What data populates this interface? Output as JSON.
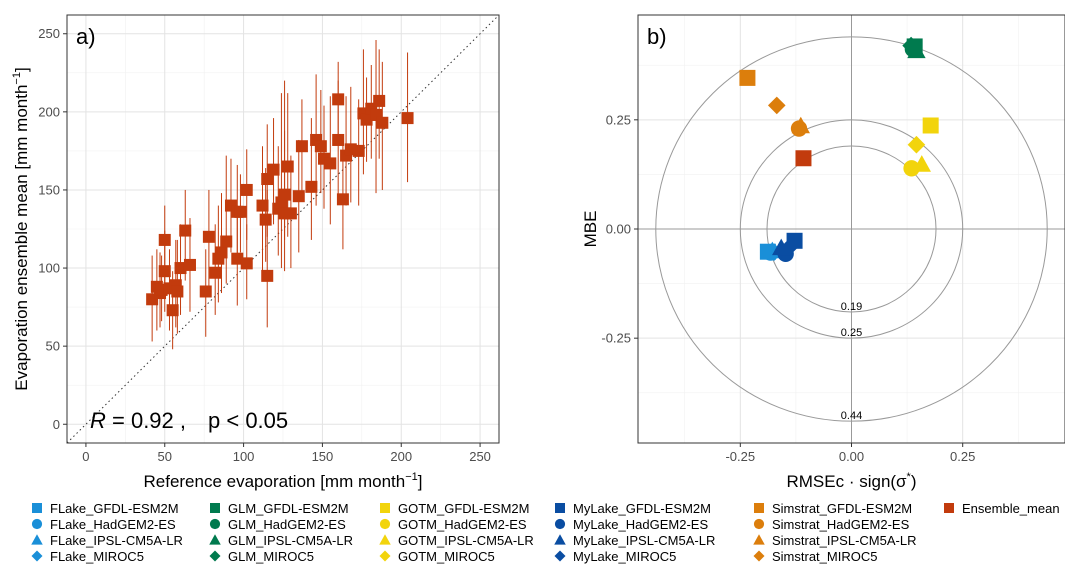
{
  "chart_data": [
    {
      "type": "scatter",
      "panel_label": "a)",
      "xlabel": "Reference evaporation [mm month",
      "xlabel_sup": "−1",
      "xlabel_end": "]",
      "ylabel": "Evaporation ensemble mean [mm month",
      "ylabel_sup": "−1",
      "ylabel_end": "]",
      "xlim": [
        -12,
        262
      ],
      "ylim": [
        -12,
        262
      ],
      "xticks": [
        0,
        50,
        100,
        150,
        200,
        250
      ],
      "yticks": [
        0,
        50,
        100,
        150,
        200,
        250
      ],
      "grid": true,
      "identity_line": true,
      "marker_color": "#C23B0D",
      "annotation": {
        "r_symbol": "R",
        "r_text": " = 0.92 ,",
        "p_text": "p < 0.05"
      },
      "points": [
        {
          "x": 42,
          "y": 80,
          "lo": 53,
          "hi": 108
        },
        {
          "x": 45,
          "y": 88,
          "lo": 60,
          "hi": 112
        },
        {
          "x": 47,
          "y": 84,
          "lo": 62,
          "hi": 110
        },
        {
          "x": 48,
          "y": 86,
          "lo": 66,
          "hi": 108
        },
        {
          "x": 50,
          "y": 98,
          "lo": 72,
          "hi": 124
        },
        {
          "x": 50,
          "y": 118,
          "lo": 85,
          "hi": 140
        },
        {
          "x": 53,
          "y": 87,
          "lo": 60,
          "hi": 112
        },
        {
          "x": 55,
          "y": 73,
          "lo": 48,
          "hi": 98
        },
        {
          "x": 57,
          "y": 89,
          "lo": 62,
          "hi": 118
        },
        {
          "x": 58,
          "y": 85,
          "lo": 58,
          "hi": 118
        },
        {
          "x": 60,
          "y": 100,
          "lo": 70,
          "hi": 128
        },
        {
          "x": 63,
          "y": 124,
          "lo": 92,
          "hi": 150
        },
        {
          "x": 66,
          "y": 102,
          "lo": 72,
          "hi": 132
        },
        {
          "x": 76,
          "y": 85,
          "lo": 56,
          "hi": 112
        },
        {
          "x": 78,
          "y": 120,
          "lo": 88,
          "hi": 150
        },
        {
          "x": 82,
          "y": 97,
          "lo": 70,
          "hi": 128
        },
        {
          "x": 84,
          "y": 106,
          "lo": 78,
          "hi": 140
        },
        {
          "x": 86,
          "y": 110,
          "lo": 84,
          "hi": 148
        },
        {
          "x": 89,
          "y": 117,
          "lo": 90,
          "hi": 172
        },
        {
          "x": 92,
          "y": 140,
          "lo": 110,
          "hi": 170
        },
        {
          "x": 96,
          "y": 106,
          "lo": 76,
          "hi": 140
        },
        {
          "x": 96,
          "y": 136,
          "lo": 106,
          "hi": 166
        },
        {
          "x": 98,
          "y": 136,
          "lo": 110,
          "hi": 160
        },
        {
          "x": 102,
          "y": 103,
          "lo": 80,
          "hi": 128
        },
        {
          "x": 102,
          "y": 150,
          "lo": 118,
          "hi": 176
        },
        {
          "x": 112,
          "y": 140,
          "lo": 96,
          "hi": 178
        },
        {
          "x": 114,
          "y": 131,
          "lo": 104,
          "hi": 164
        },
        {
          "x": 115,
          "y": 157,
          "lo": 120,
          "hi": 192
        },
        {
          "x": 115,
          "y": 95,
          "lo": 62,
          "hi": 150
        },
        {
          "x": 119,
          "y": 163,
          "lo": 128,
          "hi": 196
        },
        {
          "x": 122,
          "y": 138,
          "lo": 108,
          "hi": 178
        },
        {
          "x": 124,
          "y": 142,
          "lo": 100,
          "hi": 212
        },
        {
          "x": 126,
          "y": 147,
          "lo": 118,
          "hi": 188
        },
        {
          "x": 126,
          "y": 135,
          "lo": 98,
          "hi": 220
        },
        {
          "x": 128,
          "y": 165,
          "lo": 120,
          "hi": 212
        },
        {
          "x": 130,
          "y": 135,
          "lo": 100,
          "hi": 172
        },
        {
          "x": 135,
          "y": 146,
          "lo": 110,
          "hi": 182
        },
        {
          "x": 137,
          "y": 178,
          "lo": 148,
          "hi": 208
        },
        {
          "x": 143,
          "y": 152,
          "lo": 118,
          "hi": 196
        },
        {
          "x": 146,
          "y": 182,
          "lo": 140,
          "hi": 224
        },
        {
          "x": 149,
          "y": 178,
          "lo": 148,
          "hi": 214
        },
        {
          "x": 151,
          "y": 170,
          "lo": 138,
          "hi": 204
        },
        {
          "x": 155,
          "y": 167,
          "lo": 128,
          "hi": 210
        },
        {
          "x": 160,
          "y": 208,
          "lo": 180,
          "hi": 232
        },
        {
          "x": 160,
          "y": 182,
          "lo": 144,
          "hi": 220
        },
        {
          "x": 163,
          "y": 144,
          "lo": 112,
          "hi": 182
        },
        {
          "x": 165,
          "y": 172,
          "lo": 140,
          "hi": 210
        },
        {
          "x": 168,
          "y": 176,
          "lo": 142,
          "hi": 216
        },
        {
          "x": 173,
          "y": 175,
          "lo": 140,
          "hi": 208
        },
        {
          "x": 176,
          "y": 199,
          "lo": 160,
          "hi": 240
        },
        {
          "x": 178,
          "y": 195,
          "lo": 168,
          "hi": 222
        },
        {
          "x": 181,
          "y": 202,
          "lo": 170,
          "hi": 230
        },
        {
          "x": 184,
          "y": 198,
          "lo": 148,
          "hi": 246
        },
        {
          "x": 186,
          "y": 207,
          "lo": 170,
          "hi": 240
        },
        {
          "x": 188,
          "y": 193,
          "lo": 150,
          "hi": 232
        },
        {
          "x": 204,
          "y": 196,
          "lo": 155,
          "hi": 238
        }
      ]
    },
    {
      "type": "scatter",
      "panel_label": "b)",
      "xlabel": "RMSEc · sign(σ",
      "xlabel_sup": "*",
      "xlabel_end": ")",
      "ylabel": "MBE",
      "xlim": [
        -0.48,
        0.48
      ],
      "ylim": [
        -0.49,
        0.49
      ],
      "xticks": [
        -0.25,
        0.0,
        0.25
      ],
      "xtick_labels": [
        "-0.25",
        "0.00",
        "0.25"
      ],
      "yticks": [
        0.25,
        0.0,
        -0.25
      ],
      "ytick_labels": [
        "0.25",
        "0.00",
        "-0.25"
      ],
      "grid": true,
      "circles": [
        {
          "r": 0.19,
          "label": "0.19"
        },
        {
          "r": 0.25,
          "label": "0.25"
        },
        {
          "r": 0.44,
          "label": "0.44"
        }
      ],
      "points": [
        {
          "model": "FLake",
          "gcm": "GFDL-ESM2M",
          "x": -0.188,
          "y": -0.052
        },
        {
          "model": "FLake",
          "gcm": "HadGEM2-ES",
          "x": -0.182,
          "y": -0.054
        },
        {
          "model": "FLake",
          "gcm": "IPSL-CM5A-LR",
          "x": -0.178,
          "y": -0.05
        },
        {
          "model": "FLake",
          "gcm": "MIROC5",
          "x": -0.174,
          "y": -0.053
        },
        {
          "model": "GLM",
          "gcm": "GFDL-ESM2M",
          "x": 0.142,
          "y": 0.418
        },
        {
          "model": "GLM",
          "gcm": "HadGEM2-ES",
          "x": 0.138,
          "y": 0.412
        },
        {
          "model": "GLM",
          "gcm": "IPSL-CM5A-LR",
          "x": 0.146,
          "y": 0.408
        },
        {
          "model": "GLM",
          "gcm": "MIROC5",
          "x": 0.134,
          "y": 0.42
        },
        {
          "model": "GOTM",
          "gcm": "GFDL-ESM2M",
          "x": 0.178,
          "y": 0.237
        },
        {
          "model": "GOTM",
          "gcm": "HadGEM2-ES",
          "x": 0.135,
          "y": 0.139
        },
        {
          "model": "GOTM",
          "gcm": "IPSL-CM5A-LR",
          "x": 0.158,
          "y": 0.148
        },
        {
          "model": "GOTM",
          "gcm": "MIROC5",
          "x": 0.146,
          "y": 0.193
        },
        {
          "model": "MyLake",
          "gcm": "GFDL-ESM2M",
          "x": -0.128,
          "y": -0.027
        },
        {
          "model": "MyLake",
          "gcm": "HadGEM2-ES",
          "x": -0.148,
          "y": -0.057
        },
        {
          "model": "MyLake",
          "gcm": "IPSL-CM5A-LR",
          "x": -0.158,
          "y": -0.043
        },
        {
          "model": "MyLake",
          "gcm": "MIROC5",
          "x": -0.138,
          "y": -0.04
        },
        {
          "model": "Simstrat",
          "gcm": "GFDL-ESM2M",
          "x": -0.234,
          "y": 0.346
        },
        {
          "model": "Simstrat",
          "gcm": "HadGEM2-ES",
          "x": -0.118,
          "y": 0.23
        },
        {
          "model": "Simstrat",
          "gcm": "IPSL-CM5A-LR",
          "x": -0.114,
          "y": 0.236
        },
        {
          "model": "Simstrat",
          "gcm": "MIROC5",
          "x": -0.168,
          "y": 0.283
        },
        {
          "model": "Ensemble",
          "gcm": "mean",
          "x": -0.108,
          "y": 0.162
        }
      ]
    }
  ],
  "styles": {
    "model_colors": {
      "FLake": "#1A8FD8",
      "GLM": "#007A4E",
      "GOTM": "#F2D40C",
      "MyLake": "#0A4DA2",
      "Simstrat": "#DC7E0C",
      "Ensemble": "#C23B0D"
    },
    "gcm_shapes": {
      "GFDL-ESM2M": "square",
      "HadGEM2-ES": "circle",
      "IPSL-CM5A-LR": "triangle",
      "MIROC5": "diamond",
      "mean": "square"
    }
  },
  "legend": [
    {
      "label": "FLake_GFDL-ESM2M",
      "model": "FLake",
      "shape": "square"
    },
    {
      "label": "FLake_HadGEM2-ES",
      "model": "FLake",
      "shape": "circle"
    },
    {
      "label": "FLake_IPSL-CM5A-LR",
      "model": "FLake",
      "shape": "triangle"
    },
    {
      "label": "FLake_MIROC5",
      "model": "FLake",
      "shape": "diamond"
    },
    {
      "label": "GLM_GFDL-ESM2M",
      "model": "GLM",
      "shape": "square"
    },
    {
      "label": "GLM_HadGEM2-ES",
      "model": "GLM",
      "shape": "circle"
    },
    {
      "label": "GLM_IPSL-CM5A-LR",
      "model": "GLM",
      "shape": "triangle"
    },
    {
      "label": "GLM_MIROC5",
      "model": "GLM",
      "shape": "diamond"
    },
    {
      "label": "GOTM_GFDL-ESM2M",
      "model": "GOTM",
      "shape": "square"
    },
    {
      "label": "GOTM_HadGEM2-ES",
      "model": "GOTM",
      "shape": "circle"
    },
    {
      "label": "GOTM_IPSL-CM5A-LR",
      "model": "GOTM",
      "shape": "triangle"
    },
    {
      "label": "GOTM_MIROC5",
      "model": "GOTM",
      "shape": "diamond"
    },
    {
      "label": "MyLake_GFDL-ESM2M",
      "model": "MyLake",
      "shape": "square"
    },
    {
      "label": "MyLake_HadGEM2-ES",
      "model": "MyLake",
      "shape": "circle"
    },
    {
      "label": "MyLake_IPSL-CM5A-LR",
      "model": "MyLake",
      "shape": "triangle"
    },
    {
      "label": "MyLake_MIROC5",
      "model": "MyLake",
      "shape": "diamond"
    },
    {
      "label": "Simstrat_GFDL-ESM2M",
      "model": "Simstrat",
      "shape": "square"
    },
    {
      "label": "Simstrat_HadGEM2-ES",
      "model": "Simstrat",
      "shape": "circle"
    },
    {
      "label": "Simstrat_IPSL-CM5A-LR",
      "model": "Simstrat",
      "shape": "triangle"
    },
    {
      "label": "Simstrat_MIROC5",
      "model": "Simstrat",
      "shape": "diamond"
    },
    {
      "label": "Ensemble_mean",
      "model": "Ensemble",
      "shape": "square"
    }
  ]
}
